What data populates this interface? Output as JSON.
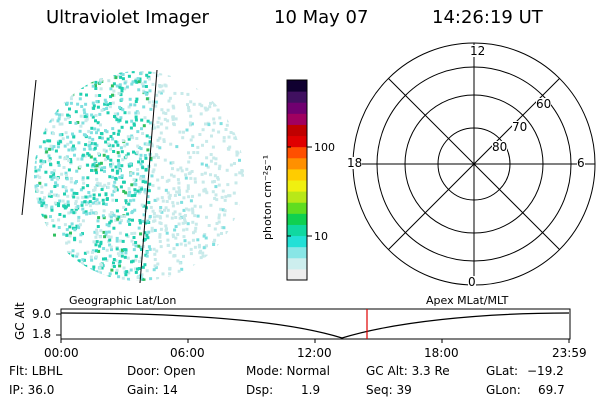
{
  "header": {
    "instrument": "Ultraviolet Imager",
    "date": "10 May 07",
    "time": "14:26:19 UT"
  },
  "colorbar": {
    "unit_label": "photon cm⁻²s⁻¹",
    "tick_labels": [
      "100",
      "10"
    ],
    "colors": [
      "#eeeeee",
      "#cdeeee",
      "#88e6e6",
      "#22e0d6",
      "#10d8a0",
      "#10d050",
      "#60dd20",
      "#b8e818",
      "#f0f010",
      "#ffcc00",
      "#ff9000",
      "#ff5000",
      "#e00000",
      "#c00000",
      "#a00060",
      "#700070",
      "#401060",
      "#100030"
    ]
  },
  "left_panel": {
    "map_label": "Geographic Lat/Lon",
    "image_colors": {
      "dense": "#20d0b0",
      "medium": "#80e0e0",
      "light": "#c8eaea",
      "green": "#30c060"
    }
  },
  "polar_plot": {
    "labels": {
      "mlt_top": "12",
      "mlt_left": "18",
      "mlt_right": "6",
      "mlt_bottom": "0",
      "lat_60": "60",
      "lat_70": "70",
      "lat_80": "80"
    },
    "map_label": "Apex MLat/MLT"
  },
  "timeline": {
    "y_axis_label": "GC Alt",
    "y_ticks": [
      "9.0",
      "1.8"
    ],
    "x_ticks": [
      "00:00",
      "06:00",
      "12:00",
      "18:00",
      "23:59"
    ],
    "current_marker_color": "#e00000"
  },
  "status": {
    "flt": "Flt: LBHL",
    "ip": "IP: 36.0",
    "door": "Door: Open",
    "gain": "Gain: 14",
    "mode": "Mode: Normal",
    "dsp_label": "Dsp:",
    "dsp_value": "1.9",
    "gc_alt": "GC Alt: 3.3 Re",
    "seq": "Seq: 39",
    "glat_label": "GLat:",
    "glat_value": "−19.2",
    "glon_label": "GLon:",
    "glon_value": "69.7"
  }
}
